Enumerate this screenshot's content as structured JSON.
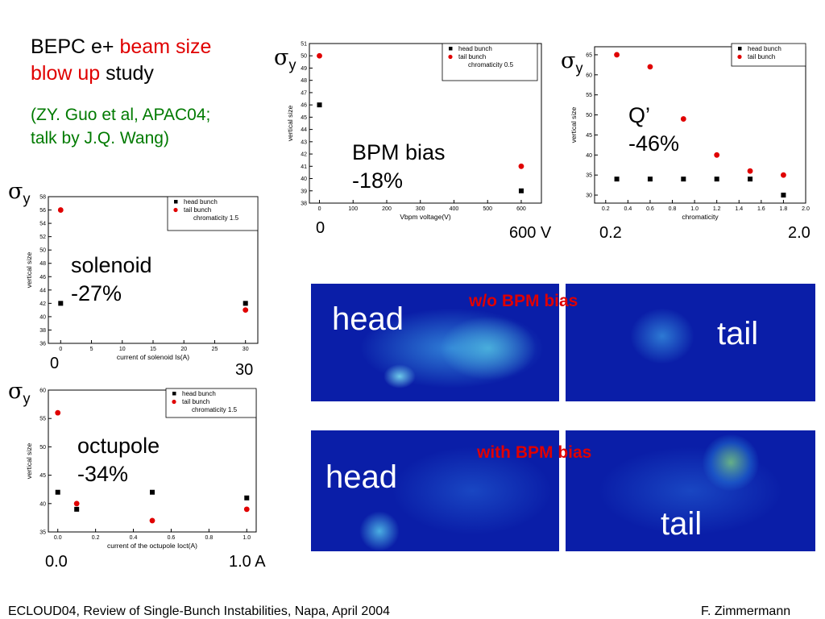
{
  "title": {
    "line1_pre": "BEPC e+ ",
    "line1_red": "beam size",
    "line2_red": "blow up",
    "line2_post": " study"
  },
  "citation": {
    "line1": "(ZY. Guo et al, APAC04;",
    "line2": "talk by J.Q. Wang)"
  },
  "sigma": {
    "symbol": "σ",
    "sub": "y"
  },
  "chart_data": [
    {
      "id": "bpm",
      "type": "scatter",
      "xlabel": "Vbpm voltage(V)",
      "ylabel": "vertical size",
      "xlim": [
        -30,
        660
      ],
      "ylim": [
        38,
        51
      ],
      "xticks": [
        0,
        100,
        200,
        300,
        400,
        500,
        600
      ],
      "yticks": [
        38,
        39,
        40,
        41,
        42,
        43,
        44,
        45,
        46,
        47,
        48,
        49,
        50,
        51
      ],
      "legend": [
        "head bunch",
        "tail bunch",
        "chromaticity 0.5"
      ],
      "series": [
        {
          "name": "head bunch",
          "color": "#000000",
          "marker": "square",
          "x": [
            0,
            600
          ],
          "y": [
            46,
            39
          ]
        },
        {
          "name": "tail bunch",
          "color": "#e00000",
          "marker": "circle",
          "x": [
            0,
            600
          ],
          "y": [
            50,
            41
          ]
        }
      ]
    },
    {
      "id": "chrom",
      "type": "scatter",
      "xlabel": "chromaticity",
      "ylabel": "vertical size",
      "xlim": [
        0.1,
        2.0
      ],
      "ylim": [
        28,
        67
      ],
      "xticks": [
        0.2,
        0.4,
        0.6,
        0.8,
        1.0,
        1.2,
        1.4,
        1.6,
        1.8,
        2.0
      ],
      "xtick_labels": [
        "0.2",
        "0.4",
        "0.6",
        "0.8",
        "1.0",
        "1.2",
        "1.4",
        "1.6",
        "1.8",
        "2.0"
      ],
      "yticks": [
        30,
        35,
        40,
        45,
        50,
        55,
        60,
        65
      ],
      "legend": [
        "head bunch",
        "tail bunch"
      ],
      "series": [
        {
          "name": "head bunch",
          "color": "#000000",
          "marker": "square",
          "x": [
            0.3,
            0.6,
            0.9,
            1.2,
            1.5,
            1.8
          ],
          "y": [
            34,
            34,
            34,
            34,
            34,
            30
          ]
        },
        {
          "name": "tail bunch",
          "color": "#e00000",
          "marker": "circle",
          "x": [
            0.3,
            0.6,
            0.9,
            1.2,
            1.5,
            1.8
          ],
          "y": [
            65,
            62,
            49,
            40,
            36,
            35
          ]
        }
      ]
    },
    {
      "id": "sol",
      "type": "scatter",
      "xlabel": "current of solenoid Is(A)",
      "ylabel": "vertical size",
      "xlim": [
        -2,
        32
      ],
      "ylim": [
        36,
        58
      ],
      "xticks": [
        0,
        5,
        10,
        15,
        20,
        25,
        30
      ],
      "yticks": [
        36,
        38,
        40,
        42,
        44,
        46,
        48,
        50,
        52,
        54,
        56,
        58
      ],
      "legend": [
        "head bunch",
        "tail bunch",
        "chromaticity 1.5"
      ],
      "series": [
        {
          "name": "head bunch",
          "color": "#000000",
          "marker": "square",
          "x": [
            0,
            30
          ],
          "y": [
            42,
            42
          ]
        },
        {
          "name": "tail bunch",
          "color": "#e00000",
          "marker": "circle",
          "x": [
            0,
            30
          ],
          "y": [
            56,
            41
          ]
        }
      ]
    },
    {
      "id": "oct",
      "type": "scatter",
      "xlabel": "current of the octupole Ioct(A)",
      "ylabel": "vertical size",
      "xlim": [
        -0.05,
        1.05
      ],
      "ylim": [
        35,
        60
      ],
      "xticks": [
        0.0,
        0.2,
        0.4,
        0.6,
        0.8,
        1.0
      ],
      "xtick_labels": [
        "0.0",
        "0.2",
        "0.4",
        "0.6",
        "0.8",
        "1.0"
      ],
      "yticks": [
        35,
        40,
        45,
        50,
        55,
        60
      ],
      "legend": [
        "head bunch",
        "tail bunch",
        "chromaticity 1.5"
      ],
      "series": [
        {
          "name": "head bunch",
          "color": "#000000",
          "marker": "square",
          "x": [
            0,
            0.1,
            0.5,
            1.0
          ],
          "y": [
            42,
            39,
            42,
            41
          ]
        },
        {
          "name": "tail bunch",
          "color": "#e00000",
          "marker": "circle",
          "x": [
            0,
            0.1,
            0.5,
            1.0
          ],
          "y": [
            56,
            40,
            37,
            39
          ]
        }
      ]
    }
  ],
  "annotations": {
    "bpm": {
      "label": "BPM bias",
      "pct": "-18%",
      "x_left": "0",
      "x_right": "600 V"
    },
    "chrom": {
      "label": "Q’",
      "pct": "-46%",
      "x_left": "0.2",
      "x_right": "2.0"
    },
    "sol": {
      "label": "solenoid",
      "pct": "-27%",
      "x_left": "0",
      "x_right": "30"
    },
    "oct": {
      "label": "octupole",
      "pct": "-34%",
      "x_left": "0.0",
      "x_right": "1.0 A"
    }
  },
  "images": {
    "top_label": "w/o BPM bias",
    "bottom_label": "with BPM bias",
    "head": "head",
    "tail": "tail"
  },
  "footer": {
    "left": "ECLOUD04, Review of Single-Bunch Instabilities, Napa, April 2004",
    "right": "F. Zimmermann"
  }
}
